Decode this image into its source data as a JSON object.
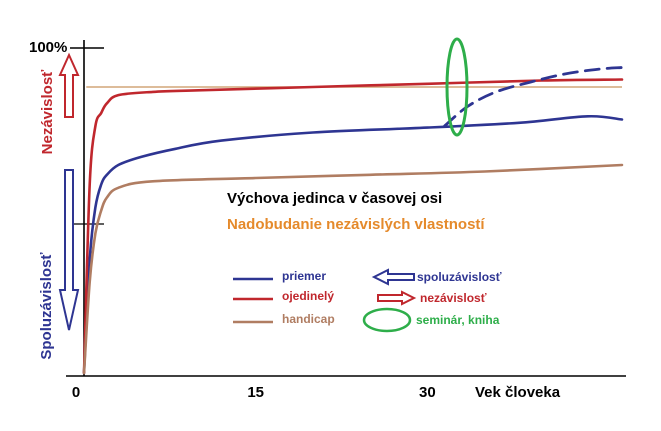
{
  "chart_data": {
    "type": "line",
    "title": "Výchova jedinca v časovej osi",
    "subtitle": "Nadobudanie nezávislých vlastností",
    "xlabel": "Vek človeka",
    "x_ticks": [
      "0",
      "15",
      "30"
    ],
    "y_ticks": [
      "100%"
    ],
    "xlim": [
      0,
      47
    ],
    "ylim": [
      0,
      100
    ],
    "grid": false,
    "y_axis_labels": {
      "upper": "Nezávislosť",
      "lower": "Spoluzávislosť"
    },
    "reference_line": {
      "y": 88
    },
    "series": [
      {
        "name": "priemer",
        "color": "#2e3592",
        "x": [
          0,
          0.5,
          1,
          1.5,
          2,
          3,
          5,
          8,
          12,
          20,
          30,
          38,
          44,
          47
        ],
        "y": [
          0,
          35,
          51,
          58,
          61,
          64,
          66.5,
          69,
          71.5,
          74,
          75.5,
          77,
          79,
          78
        ]
      },
      {
        "name": "ojedinelý",
        "color": "#c0272d",
        "x": [
          0,
          0.5,
          1,
          1.5,
          2,
          3,
          6,
          10,
          20,
          30,
          40,
          47
        ],
        "y": [
          0,
          58,
          76,
          80,
          83,
          85.5,
          86.5,
          87,
          88,
          89,
          90,
          90.3
        ]
      },
      {
        "name": "handicap",
        "color": "#b07d62",
        "x": [
          0,
          0.5,
          1,
          1.5,
          2,
          3,
          6,
          15,
          25,
          35,
          47
        ],
        "y": [
          0,
          28,
          43,
          50,
          54,
          57,
          59,
          60,
          61,
          62,
          64
        ]
      },
      {
        "name": "seminár, kniha",
        "style": "dashed",
        "color": "#2e3592",
        "x": [
          31.5,
          33.5,
          36,
          39,
          42,
          45,
          47
        ],
        "y": [
          76,
          82,
          86.5,
          89.5,
          92,
          93.5,
          94
        ]
      }
    ],
    "legend": {
      "placement": "center",
      "items": [
        {
          "label": "priemer",
          "color": "#2e3592",
          "marker": "line"
        },
        {
          "label": "ojedinelý",
          "color": "#c0272d",
          "marker": "line"
        },
        {
          "label": "handicap",
          "color": "#b07d62",
          "marker": "line"
        },
        {
          "label": "spoluzávislosť",
          "color": "#2e3592",
          "marker": "arrow-left"
        },
        {
          "label": "nezávislosť",
          "color": "#c0272d",
          "marker": "arrow-right"
        },
        {
          "label": "seminár, kniha",
          "color": "#2eae4a",
          "marker": "ellipse"
        }
      ]
    },
    "colors": {
      "title": "#000000",
      "subtitle": "#e58a2b",
      "independence": "#c0272d",
      "codependence": "#2e3592",
      "reference": "#d2a679",
      "highlight": "#2eae4a"
    }
  }
}
